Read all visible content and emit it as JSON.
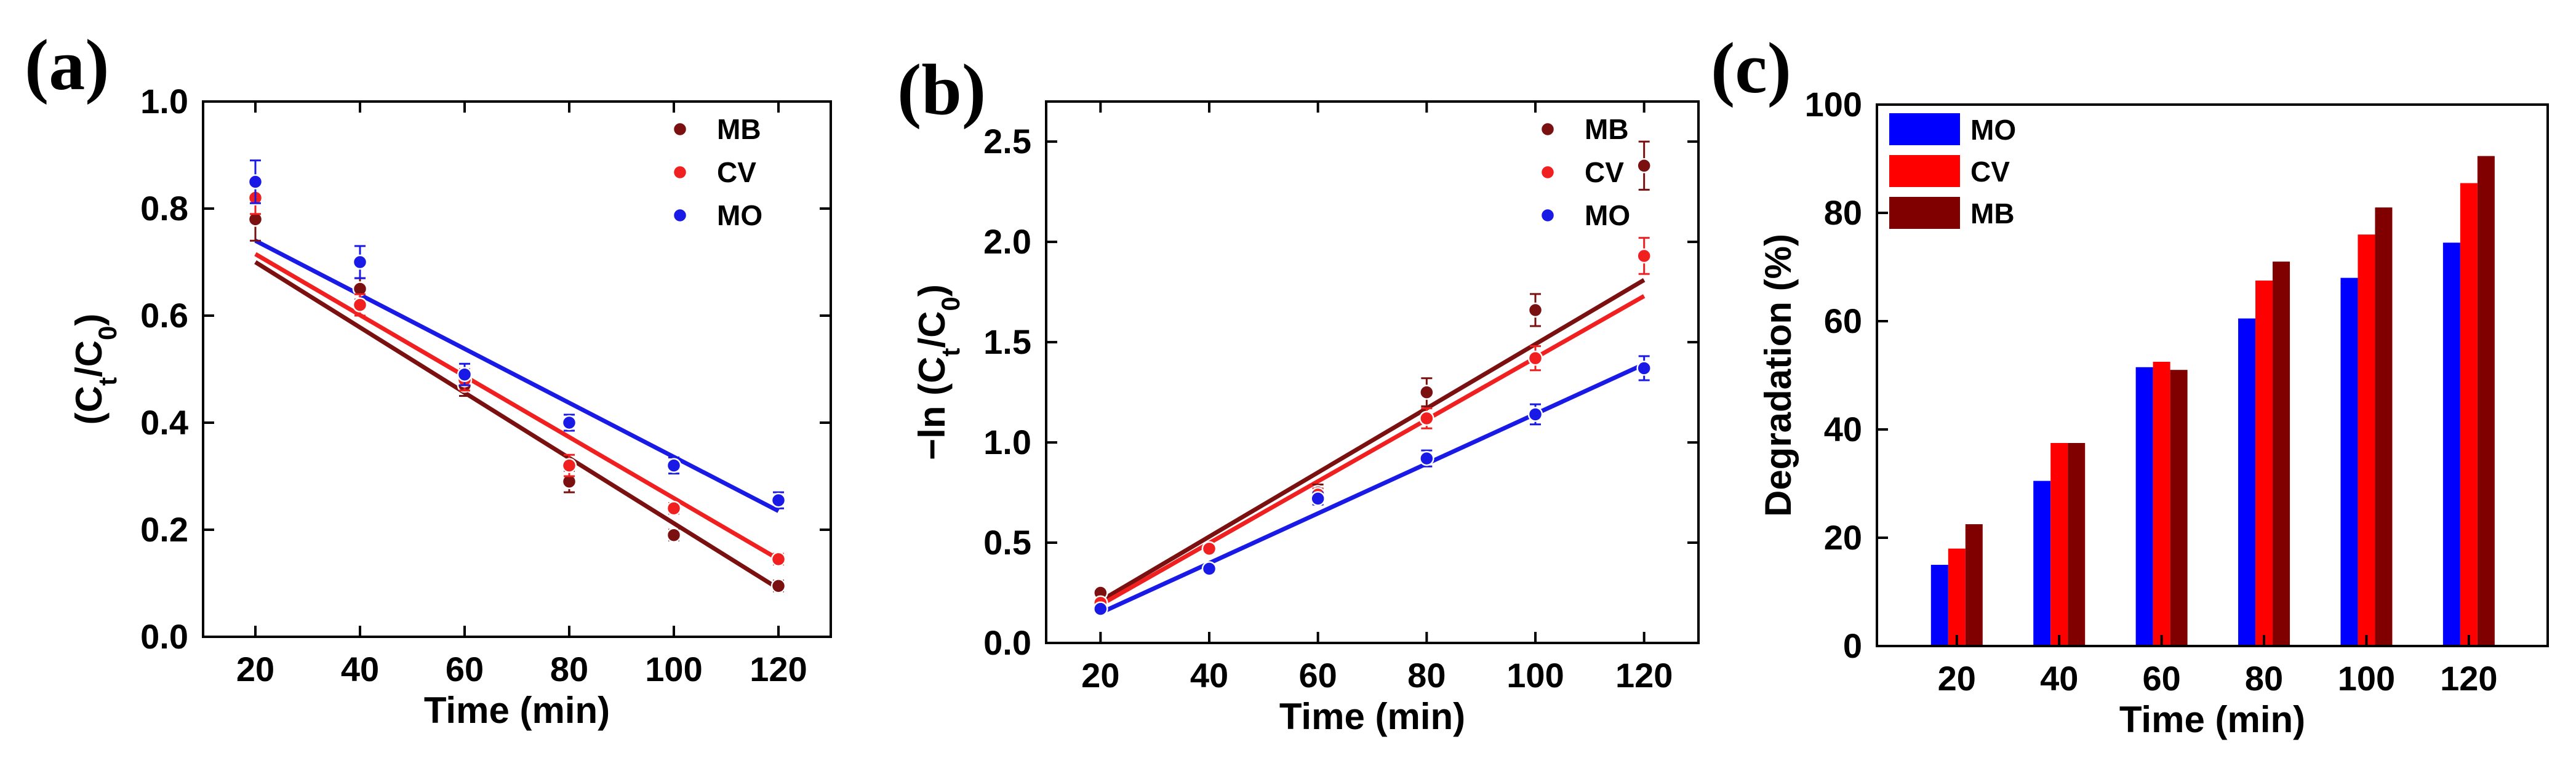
{
  "chart_data": [
    {
      "panel": "(a)",
      "type": "scatter",
      "xlabel": "Time (min)",
      "ylabel_main": "(C",
      "ylabel_sub1": "t",
      "ylabel_mid": "/C",
      "ylabel_sub2": "0",
      "ylabel_end": ")",
      "xlim": [
        10,
        130
      ],
      "ylim": [
        0.0,
        1.0
      ],
      "xticks": [
        20,
        40,
        60,
        80,
        100,
        120
      ],
      "xtick_labels": [
        "20",
        "40",
        "60",
        "80",
        "100",
        "120"
      ],
      "yticks": [
        0.0,
        0.2,
        0.4,
        0.6,
        0.8,
        1.0
      ],
      "ytick_labels": [
        "0.0",
        "0.2",
        "0.4",
        "0.6",
        "0.8",
        "1.0"
      ],
      "legend_position": "top-right",
      "x": [
        20,
        40,
        60,
        80,
        100,
        120
      ],
      "series": [
        {
          "name": "MB",
          "color": "#7b1010",
          "values": [
            0.78,
            0.65,
            0.47,
            0.29,
            0.19,
            0.095
          ],
          "errors": [
            0.04,
            0.02,
            0.02,
            0.02,
            0.01,
            0.01
          ],
          "fit": [
            [
              20,
              0.7
            ],
            [
              120,
              0.09
            ]
          ]
        },
        {
          "name": "CV",
          "color": "#f02020",
          "values": [
            0.82,
            0.62,
            0.48,
            0.32,
            0.24,
            0.145
          ],
          "errors": [
            0.03,
            0.02,
            0.02,
            0.02,
            0.01,
            0.01
          ],
          "fit": [
            [
              20,
              0.715
            ],
            [
              120,
              0.145
            ]
          ]
        },
        {
          "name": "MO",
          "color": "#1a1ae6",
          "values": [
            0.85,
            0.7,
            0.49,
            0.4,
            0.32,
            0.255
          ],
          "errors": [
            0.04,
            0.03,
            0.02,
            0.015,
            0.015,
            0.015
          ],
          "fit": [
            [
              20,
              0.74
            ],
            [
              120,
              0.235
            ]
          ]
        }
      ]
    },
    {
      "panel": "(b)",
      "type": "scatter",
      "xlabel": "Time (min)",
      "ylabel_main": "−ln (C",
      "ylabel_sub1": "t",
      "ylabel_mid": "/C",
      "ylabel_sub2": "0",
      "ylabel_end": ")",
      "xlim": [
        10,
        130
      ],
      "ylim": [
        0.0,
        2.7
      ],
      "xticks": [
        20,
        40,
        60,
        80,
        100,
        120
      ],
      "xtick_labels": [
        "20",
        "40",
        "60",
        "80",
        "100",
        "120"
      ],
      "yticks": [
        0.0,
        0.5,
        1.0,
        1.5,
        2.0,
        2.5
      ],
      "ytick_labels": [
        "0.0",
        "0.5",
        "1.0",
        "1.5",
        "2.0",
        "2.5"
      ],
      "legend_position": "top-right",
      "x": [
        20,
        40,
        60,
        80,
        100,
        120
      ],
      "series": [
        {
          "name": "MB",
          "color": "#7b1010",
          "values": [
            0.25,
            0.47,
            0.75,
            1.25,
            1.66,
            2.38
          ],
          "errors": [
            0.02,
            0.02,
            0.04,
            0.07,
            0.08,
            0.12
          ],
          "fit": [
            [
              20,
              0.21
            ],
            [
              120,
              1.81
            ]
          ]
        },
        {
          "name": "CV",
          "color": "#f02020",
          "values": [
            0.2,
            0.47,
            0.74,
            1.12,
            1.42,
            1.93
          ],
          "errors": [
            0.02,
            0.02,
            0.03,
            0.05,
            0.06,
            0.09
          ],
          "fit": [
            [
              20,
              0.19
            ],
            [
              120,
              1.73
            ]
          ]
        },
        {
          "name": "MO",
          "color": "#1a1ae6",
          "values": [
            0.17,
            0.37,
            0.72,
            0.92,
            1.14,
            1.37
          ],
          "errors": [
            0.01,
            0.02,
            0.03,
            0.04,
            0.05,
            0.06
          ],
          "fit": [
            [
              20,
              0.15
            ],
            [
              120,
              1.39
            ]
          ]
        }
      ]
    },
    {
      "panel": "(c)",
      "type": "bar",
      "xlabel": "Time (min)",
      "ylabel": "Degradation (%)",
      "ylim": [
        0,
        100
      ],
      "yticks": [
        0,
        20,
        40,
        60,
        80,
        100
      ],
      "ytick_labels": [
        "0",
        "20",
        "40",
        "60",
        "80",
        "100"
      ],
      "categories": [
        "20",
        "40",
        "60",
        "80",
        "100",
        "120"
      ],
      "legend_position": "top-left",
      "series": [
        {
          "name": "MO",
          "color": "#0000ff",
          "values": [
            15,
            30.5,
            51.5,
            60.5,
            68,
            74.5
          ]
        },
        {
          "name": "CV",
          "color": "#ff0000",
          "values": [
            18,
            37.5,
            52.5,
            67.5,
            76,
            85.5
          ]
        },
        {
          "name": "MB",
          "color": "#800000",
          "values": [
            22.5,
            37.5,
            51,
            71,
            81,
            90.5
          ]
        }
      ]
    }
  ]
}
